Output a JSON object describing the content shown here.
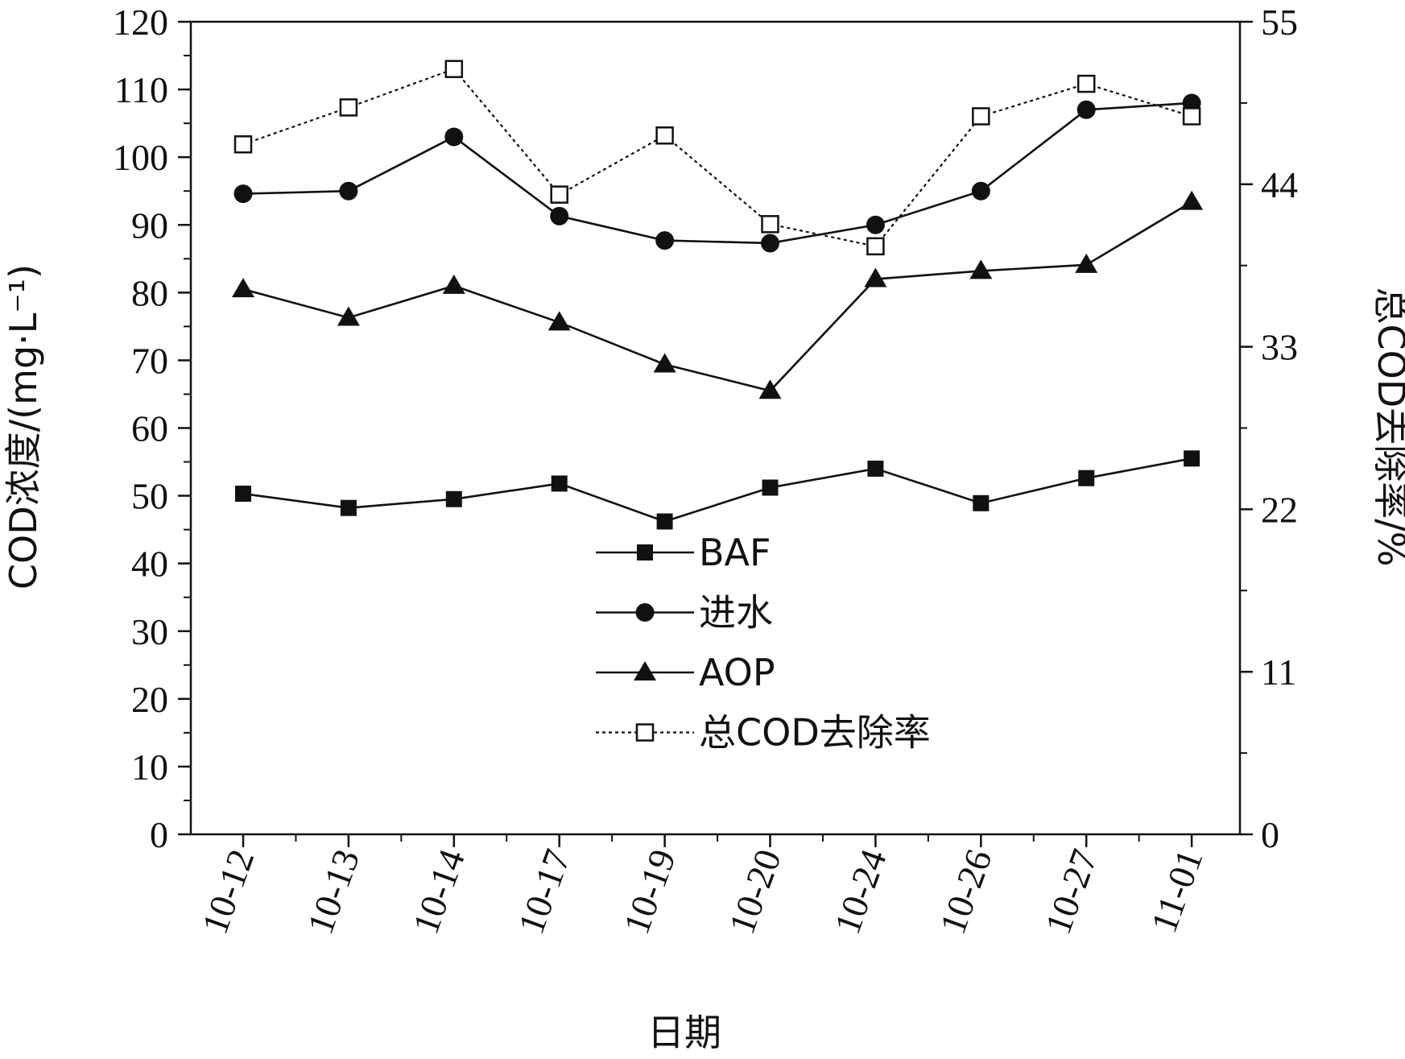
{
  "chart_data": {
    "type": "line",
    "categories": [
      "10-12",
      "10-13",
      "10-14",
      "10-17",
      "10-19",
      "10-20",
      "10-24",
      "10-26",
      "10-27",
      "11-01"
    ],
    "xlabel": "日期",
    "ylabel": "COD浓度/(mg·L⁻¹)",
    "ylabel_right": "总COD去除率/%",
    "ylim": [
      0,
      120
    ],
    "yticks": [
      0,
      10,
      20,
      30,
      40,
      50,
      60,
      70,
      80,
      90,
      100,
      110,
      120
    ],
    "ylim_right": [
      0,
      55
    ],
    "yticks_right": [
      0,
      11,
      22,
      33,
      44,
      55
    ],
    "legend_position": "center",
    "series": [
      {
        "name": "BAF",
        "axis": "left",
        "marker": "filled-square",
        "line": "solid",
        "color": "#111111",
        "values": [
          50.3,
          48.2,
          49.5,
          51.8,
          46.2,
          51.2,
          54.0,
          48.9,
          52.6,
          55.5
        ]
      },
      {
        "name": "进水",
        "axis": "left",
        "marker": "filled-circle",
        "line": "solid",
        "color": "#111111",
        "values": [
          94.6,
          95.0,
          103.0,
          91.3,
          87.7,
          87.3,
          90.0,
          95.0,
          107.0,
          108.0
        ]
      },
      {
        "name": "AOP",
        "axis": "left",
        "marker": "filled-triangle",
        "line": "solid",
        "color": "#111111",
        "values": [
          80.5,
          76.3,
          81.0,
          75.6,
          69.4,
          65.5,
          82.0,
          83.2,
          84.1,
          93.4
        ]
      },
      {
        "name": "总COD去除率",
        "axis": "right",
        "marker": "open-square",
        "line": "dotted",
        "color": "#111111",
        "values": [
          46.7,
          49.2,
          51.8,
          43.3,
          47.3,
          41.3,
          39.8,
          48.6,
          50.8,
          48.6
        ]
      }
    ]
  }
}
